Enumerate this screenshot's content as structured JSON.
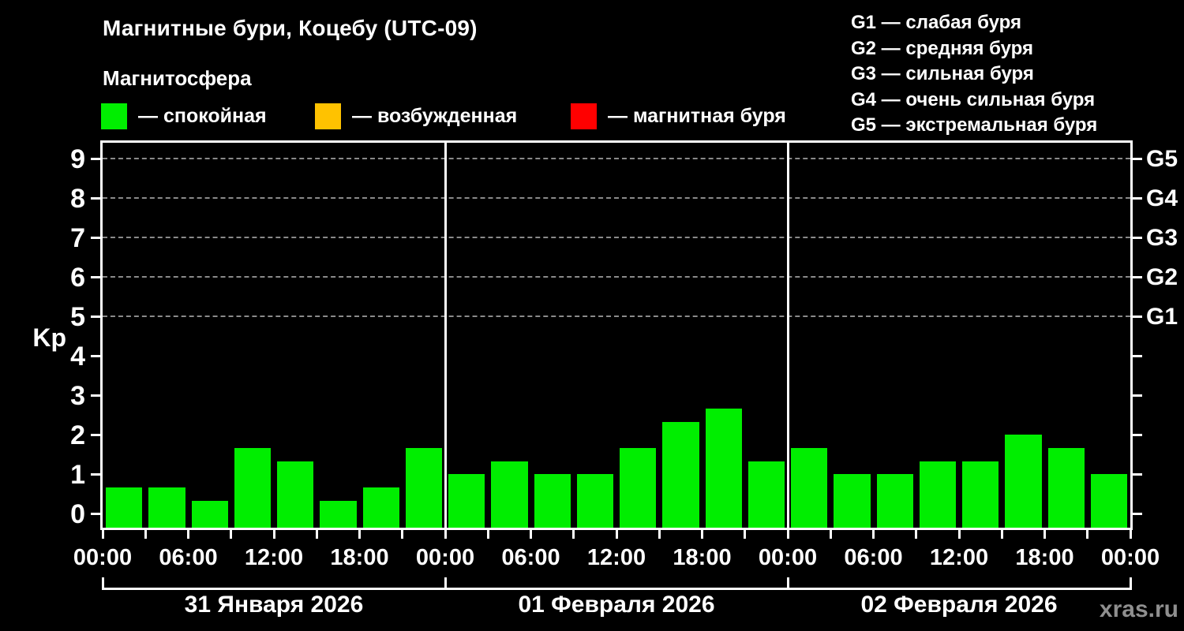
{
  "header": {
    "title": "Магнитные бури, Коцебу (UTC-09)",
    "subtitle": "Магнитосфера"
  },
  "legend": {
    "items": [
      {
        "name": "calm",
        "label": "— спокойная",
        "color": "#00ee00"
      },
      {
        "name": "excited",
        "label": "— возбужденная",
        "color": "#ffc200"
      },
      {
        "name": "storm",
        "label": "— магнитная буря",
        "color": "#ff0000"
      }
    ]
  },
  "storm_scale_legend": [
    "G1 — слабая буря",
    "G2 — средняя буря",
    "G3 — сильная буря",
    "G4 — очень сильная буря",
    "G5 — экстремальная буря"
  ],
  "watermark": "xras.ru",
  "chart_data": {
    "type": "bar",
    "title": "Магнитные бури, Коцебу (UTC-09)",
    "ylabel": "Kp",
    "ylim": [
      -0.36,
      9.4
    ],
    "yticks": [
      0,
      1,
      2,
      3,
      4,
      5,
      6,
      7,
      8,
      9
    ],
    "gridline_values": [
      5,
      6,
      7,
      8,
      9
    ],
    "grid_style": "dashed",
    "right_axis": [
      {
        "value": 5,
        "label": "G1"
      },
      {
        "value": 6,
        "label": "G2"
      },
      {
        "value": 7,
        "label": "G3"
      },
      {
        "value": 8,
        "label": "G4"
      },
      {
        "value": 9,
        "label": "G5"
      }
    ],
    "bar_color": "#00ee00",
    "hours_per_bar": 3,
    "xtick_labels": [
      "00:00",
      "06:00",
      "12:00",
      "18:00",
      "00:00",
      "06:00",
      "12:00",
      "18:00",
      "00:00",
      "06:00",
      "12:00",
      "18:00",
      "00:00"
    ],
    "days": [
      {
        "date": "31 Января 2026",
        "values": [
          0.67,
          0.67,
          0.33,
          1.67,
          1.33,
          0.33,
          0.67,
          1.67
        ]
      },
      {
        "date": "01 Февраля 2026",
        "values": [
          1.0,
          1.33,
          1.0,
          1.0,
          1.67,
          2.33,
          2.67,
          1.33
        ]
      },
      {
        "date": "02 Февраля 2026",
        "values": [
          1.67,
          1.0,
          1.0,
          1.33,
          1.33,
          2.0,
          1.67,
          1.0
        ]
      }
    ]
  }
}
